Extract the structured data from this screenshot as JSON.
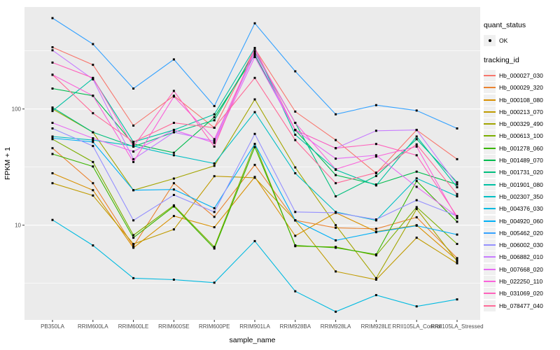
{
  "legend": {
    "quant_status_title": "quant_status",
    "quant_status_items": [
      {
        "label": "OK"
      }
    ],
    "tracking_id_title": "tracking_id"
  },
  "chart_data": {
    "type": "line",
    "title": "",
    "xlabel": "sample_name",
    "ylabel": "FPKM + 1",
    "y_scale": "log10",
    "ylim": [
      1.5,
      755
    ],
    "y_major_ticks": [
      10,
      100
    ],
    "y_major_labels": [
      "10",
      "100"
    ],
    "y_minor_ticks": [
      3.162,
      31.62,
      316.2
    ],
    "grid": "on",
    "legend_position": "right",
    "point_symbol_label": "OK",
    "colors": {
      "panel_bg": "#EBEBEB",
      "grid": "#FFFFFF",
      "point": "#000000",
      "axis_text": "#4D4D4D",
      "axis_title": "#000000",
      "tick_mark": "#333333",
      "key_bg": "#F0F0F0"
    },
    "categories": [
      "PB350LA",
      "RRIM600LA",
      "RRIM600LE",
      "RRIM600SE",
      "RRIM600PE",
      "RRIM901LA",
      "RRIM928BA",
      "RRIM928LA",
      "RRIM928LE",
      "RRII105LA_Control",
      "RRII105LA_Stressed"
    ],
    "series": [
      {
        "name": "Hb_000027_030",
        "color": "#F8766D",
        "values": [
          340,
          240,
          72,
          130,
          69,
          330,
          95,
          54,
          28,
          66,
          37
        ]
      },
      {
        "name": "Hb_000029_320",
        "color": "#EA8331",
        "values": [
          46,
          23,
          6.6,
          23,
          11.8,
          33,
          11,
          9.5,
          9.3,
          11.7,
          5.2
        ]
      },
      {
        "name": "Hb_000108_080",
        "color": "#D89000",
        "values": [
          28,
          20,
          6.4,
          12,
          9.6,
          26,
          8.1,
          12.8,
          8.8,
          10,
          5
        ]
      },
      {
        "name": "Hb_000213_070",
        "color": "#C09B00",
        "values": [
          23,
          18,
          6.9,
          9.2,
          26.4,
          25.6,
          11,
          4,
          3.4,
          7.8,
          4.7
        ]
      },
      {
        "name": "Hb_000329_490",
        "color": "#A3A500",
        "values": [
          100,
          63,
          20,
          25.2,
          32.4,
          121,
          31.4,
          10,
          3.5,
          13.8,
          4.9
        ]
      },
      {
        "name": "Hb_000613_100",
        "color": "#7CAE00",
        "values": [
          55,
          35,
          8.2,
          14.8,
          6.5,
          50,
          6.6,
          6.5,
          5.5,
          14.3,
          6.9
        ]
      },
      {
        "name": "Hb_001278_060",
        "color": "#39B600",
        "values": [
          41,
          32,
          7.8,
          14.5,
          6.3,
          47,
          6.7,
          6.4,
          5.6,
          24,
          10.7
        ]
      },
      {
        "name": "Hb_001489_070",
        "color": "#00BB4E",
        "values": [
          150,
          130,
          50,
          42,
          85,
          290,
          66,
          27,
          22.4,
          28.9,
          22.4
        ]
      },
      {
        "name": "Hb_001731_020",
        "color": "#00BF7D",
        "values": [
          103,
          63,
          47.5,
          63,
          80,
          310,
          76,
          17.7,
          26.5,
          55,
          23.4
        ]
      },
      {
        "name": "Hb_001901_080",
        "color": "#00C1A3",
        "values": [
          96,
          183,
          52,
          66,
          90,
          335,
          60,
          30,
          22,
          58,
          21.2
        ]
      },
      {
        "name": "Hb_002307_350",
        "color": "#00BFC4",
        "values": [
          58,
          54,
          48,
          40,
          34,
          94,
          28,
          13,
          11,
          25.3,
          17.7
        ]
      },
      {
        "name": "Hb_004376_030",
        "color": "#00BAE0",
        "values": [
          11.1,
          6.7,
          3.5,
          3.4,
          3.2,
          7.3,
          2.7,
          1.8,
          2.5,
          2,
          2.3
        ]
      },
      {
        "name": "Hb_004920_060",
        "color": "#00B0F6",
        "values": [
          56,
          52,
          20,
          20.3,
          14,
          50,
          11,
          7.4,
          8.7,
          9.9,
          8.3
        ]
      },
      {
        "name": "Hb_005462_020",
        "color": "#35A2FF",
        "values": [
          605,
          362,
          150,
          267,
          106,
          546,
          211,
          90,
          108,
          97,
          68
        ]
      },
      {
        "name": "Hb_006002_030",
        "color": "#9590FF",
        "values": [
          68,
          48,
          11,
          18.2,
          13,
          61,
          13,
          12.8,
          11.2,
          16.4,
          12
        ]
      },
      {
        "name": "Hb_006882_010",
        "color": "#C77CFF",
        "values": [
          320,
          180,
          37,
          63,
          53,
          300,
          66,
          46,
          65,
          66,
          22.4
        ]
      },
      {
        "name": "Hb_007668_020",
        "color": "#E76BF3",
        "values": [
          76,
          56,
          43,
          66,
          51,
          280,
          66,
          37.4,
          40,
          21.4,
          11.9
        ]
      },
      {
        "name": "Hb_022250_110",
        "color": "#FA62DB",
        "values": [
          197,
          130,
          35,
          128,
          55,
          315,
          76,
          30.3,
          39,
          47.5,
          11.5
        ]
      },
      {
        "name": "Hb_031069_020",
        "color": "#FF62BC",
        "values": [
          251,
          185,
          47.5,
          143,
          47.5,
          335,
          66,
          46,
          50,
          40,
          11.9
        ]
      },
      {
        "name": "Hb_078477_040",
        "color": "#FF6A98",
        "values": [
          197,
          92,
          52,
          76,
          69,
          185,
          54,
          23,
          28.3,
          49.6,
          18.5
        ]
      }
    ]
  }
}
